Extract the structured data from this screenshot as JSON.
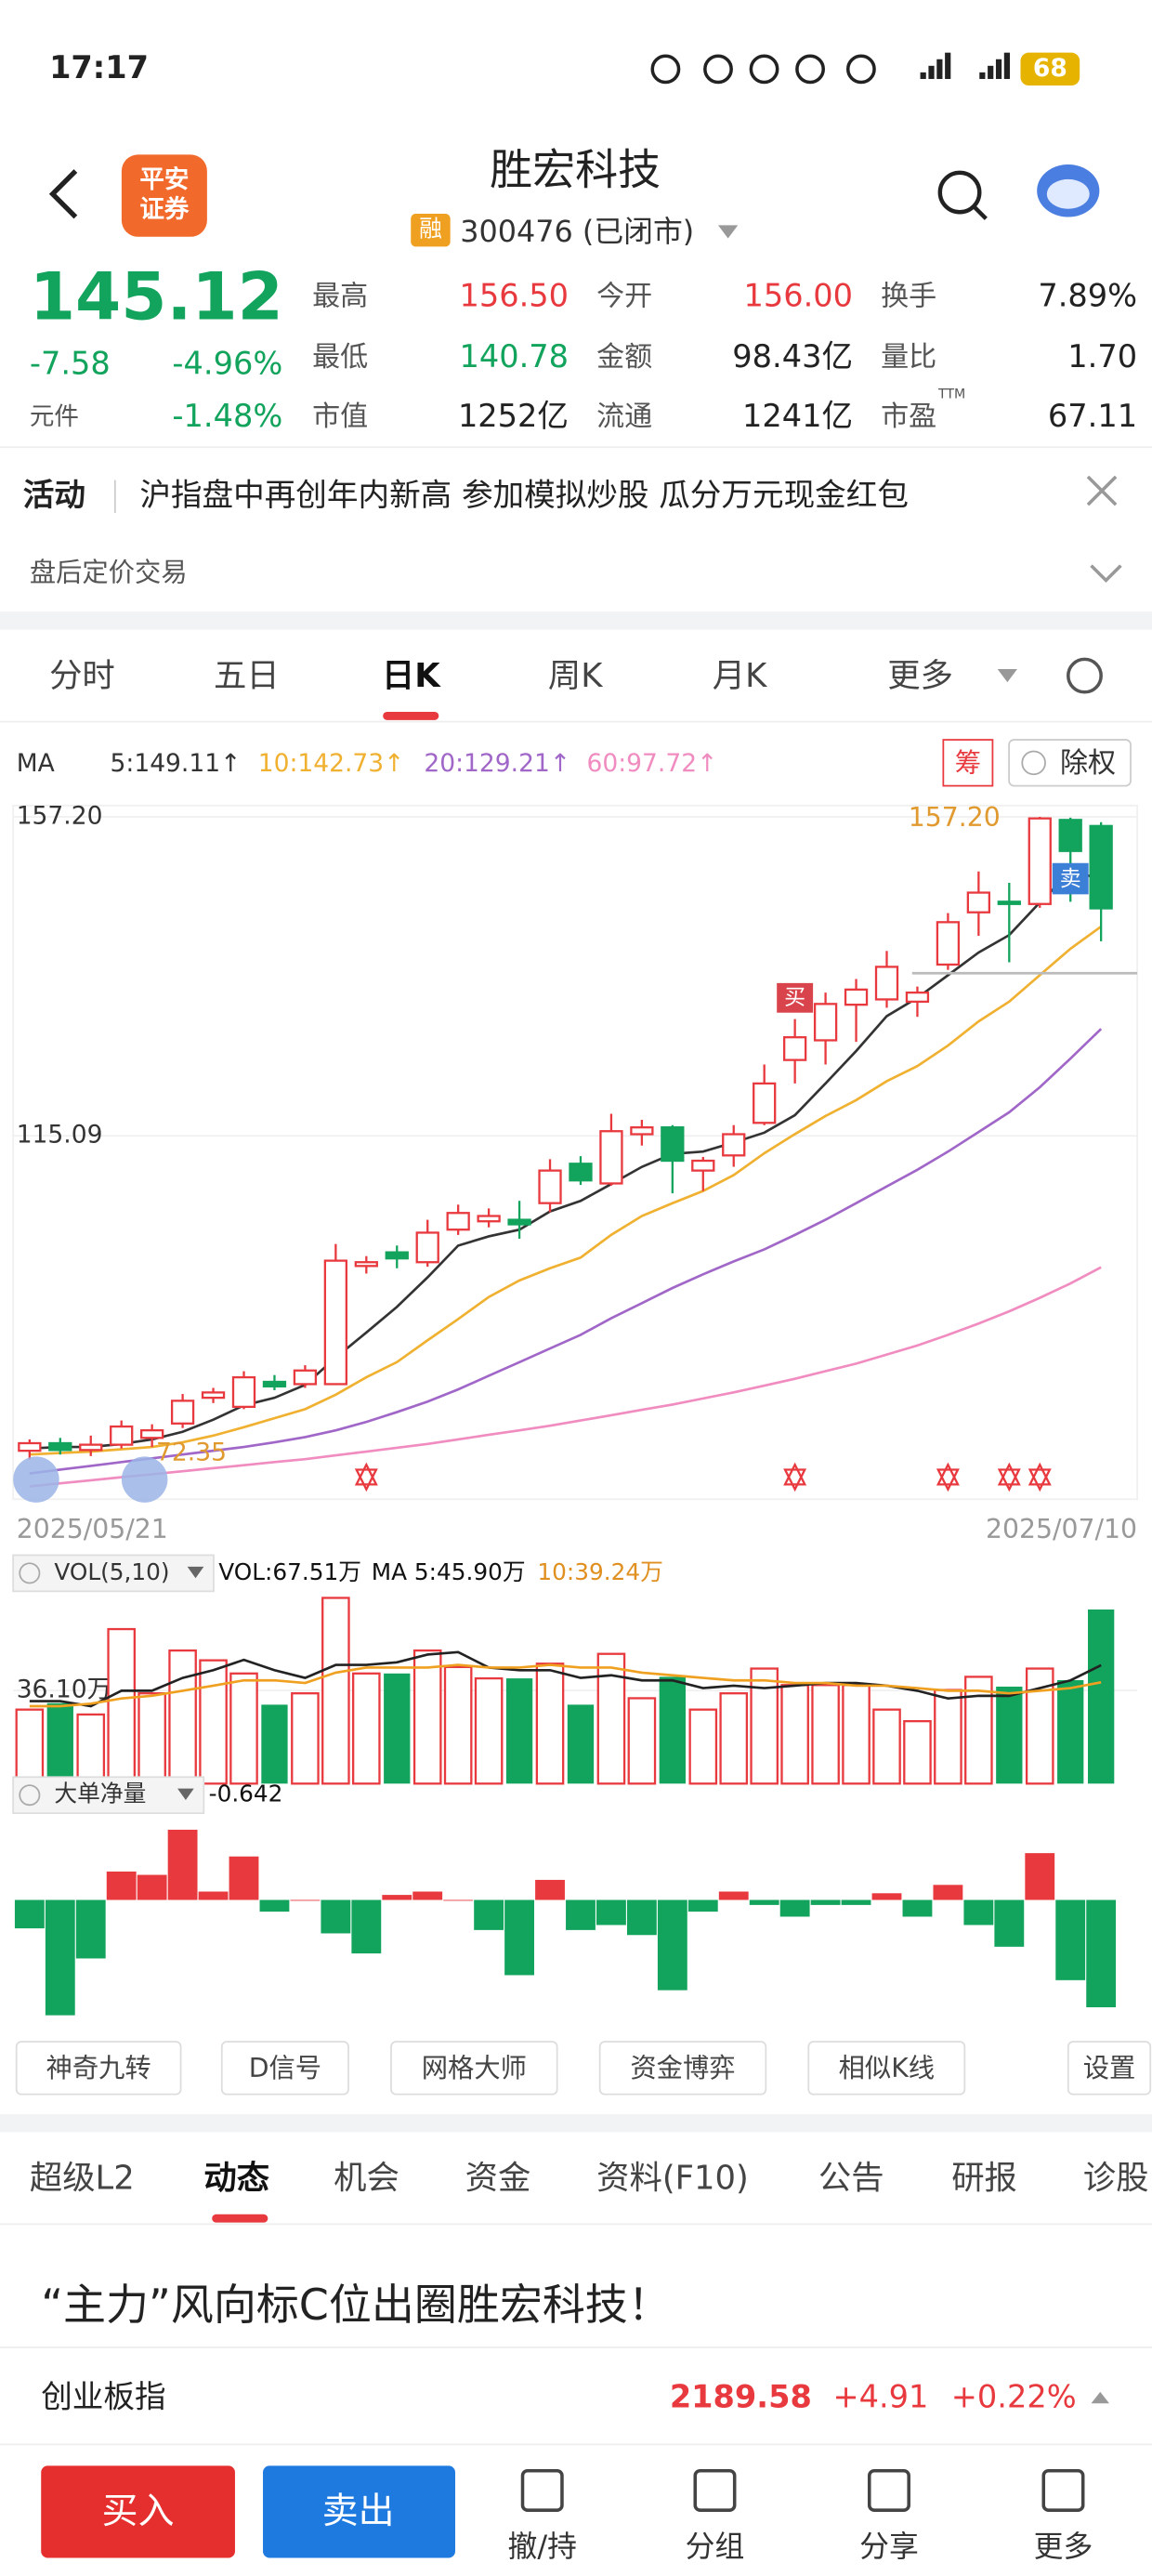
{
  "status_bar": {
    "time": "17:17",
    "battery": "68"
  },
  "header": {
    "logo": [
      "平安",
      "证券"
    ],
    "title": "胜宏科技",
    "badge": "融",
    "code": "300476 (已闭市)"
  },
  "quote": {
    "price": "145.12",
    "change": "-7.58",
    "change_pct": "-4.96%",
    "sector": "元件",
    "sector_pct": "-1.48%",
    "fields": [
      [
        "最高",
        "156.50"
      ],
      [
        "最低",
        "140.78"
      ],
      [
        "市值",
        "1252亿"
      ],
      [
        "今开",
        "156.00"
      ],
      [
        "金额",
        "98.43亿"
      ],
      [
        "流通",
        "1241亿"
      ],
      [
        "换手",
        "7.89%"
      ],
      [
        "量比",
        "1.70"
      ],
      [
        "市盈",
        "67.11"
      ]
    ],
    "ttm": "TTM"
  },
  "activity": {
    "label": "活动",
    "text": "沪指盘中再创年内新高 参加模拟炒股 瓜分万元现金红包",
    "after_hours": "盘后定价交易"
  },
  "period_tabs": [
    "分时",
    "五日",
    "日K",
    "周K",
    "月K",
    "更多"
  ],
  "active_period": 2,
  "chart_tools": {
    "chips": "筹",
    "adjust": "除权"
  },
  "chart_data": [
    {
      "type": "candlestick",
      "indicator": "MA",
      "categories": [
        "2025/05/21",
        null,
        null,
        null,
        null,
        null,
        null,
        null,
        null,
        null,
        null,
        null,
        null,
        null,
        null,
        null,
        null,
        null,
        null,
        null,
        null,
        null,
        null,
        null,
        null,
        null,
        null,
        null,
        null,
        null,
        null,
        null,
        null,
        null,
        null,
        "2025/07/10"
      ],
      "open": [
        73.5,
        74.5,
        73.6,
        74.3,
        75.2,
        77.1,
        80.5,
        79.3,
        82.6,
        82.3,
        82.3,
        97.9,
        99.7,
        98.4,
        102.7,
        103.8,
        104.0,
        106.2,
        111.4,
        108.8,
        115.3,
        116.2,
        110.5,
        112.5,
        116.8,
        125.1,
        127.7,
        132.4,
        133.1,
        132.8,
        137.7,
        144.6,
        146.0,
        145.7,
        156.8,
        156.0
      ],
      "high": [
        75.0,
        75.2,
        75.5,
        77.5,
        77.0,
        81.0,
        81.8,
        84.0,
        83.5,
        84.8,
        100.8,
        99.2,
        100.6,
        104.0,
        106.0,
        105.5,
        106.5,
        112.0,
        112.4,
        118.0,
        117.2,
        116.5,
        112.3,
        116.5,
        124.5,
        130.5,
        134.0,
        135.8,
        139.5,
        134.8,
        144.5,
        150.0,
        148.5,
        157.2,
        157.1,
        156.5
      ],
      "low": [
        72.35,
        73.0,
        72.8,
        73.8,
        74.0,
        76.5,
        79.8,
        79.0,
        81.5,
        81.8,
        82.3,
        96.9,
        97.6,
        97.8,
        102.0,
        103.0,
        101.5,
        105.0,
        108.6,
        108.5,
        113.8,
        107.5,
        107.8,
        111.0,
        116.5,
        122.0,
        124.5,
        127.5,
        132.0,
        130.8,
        137.0,
        141.5,
        138.0,
        145.2,
        146.0,
        140.78
      ],
      "close": [
        74.5,
        73.6,
        74.3,
        76.7,
        76.2,
        80.1,
        81.2,
        83.2,
        82.0,
        84.1,
        98.6,
        98.4,
        98.9,
        102.3,
        104.9,
        104.5,
        103.4,
        110.5,
        109.2,
        115.7,
        116.2,
        111.8,
        111.8,
        115.3,
        122.0,
        128.1,
        132.5,
        134.4,
        137.4,
        134.0,
        143.3,
        147.2,
        145.7,
        157.0,
        152.7,
        145.12
      ],
      "ylim": [
        67.1,
        158.7
      ],
      "yticks": [
        {
          "value": 157.2,
          "label": "157.20"
        },
        115.09
      ],
      "grid": true,
      "colors": {
        "up": "#e8393e",
        "down": "#12a35c"
      },
      "series": [
        {
          "name": "5:149.11↑",
          "color": "#333333",
          "values": [
            73.8,
            74.0,
            74.0,
            74.4,
            75.0,
            76.0,
            77.6,
            79.5,
            80.5,
            82.2,
            85.8,
            89.1,
            92.5,
            96.4,
            100.6,
            101.8,
            102.7,
            105.1,
            106.5,
            108.7,
            111.0,
            112.7,
            113.0,
            114.2,
            115.5,
            117.8,
            122.0,
            126.3,
            130.9,
            133.3,
            136.3,
            139.3,
            141.6,
            145.9,
            149.9,
            149.11
          ]
        },
        {
          "name": "10:142.73↑",
          "color": "#f0b030",
          "values": [
            73.0,
            73.2,
            73.4,
            73.7,
            74.0,
            74.6,
            75.5,
            76.6,
            77.8,
            79.0,
            80.9,
            83.2,
            85.2,
            88.1,
            90.9,
            93.8,
            96.0,
            97.6,
            99.0,
            102.0,
            104.5,
            106.2,
            107.8,
            109.9,
            112.8,
            115.3,
            117.7,
            119.8,
            122.3,
            124.3,
            127.0,
            130.2,
            132.8,
            136.3,
            139.8,
            142.73
          ]
        },
        {
          "name": "20:129.21↑",
          "color": "#a066c8",
          "values": [
            70.5,
            71.0,
            71.5,
            72.0,
            72.5,
            73.0,
            73.5,
            74.0,
            74.6,
            75.3,
            76.2,
            77.3,
            78.6,
            80.0,
            81.6,
            83.4,
            85.2,
            87.0,
            88.8,
            91.0,
            93.0,
            95.0,
            96.8,
            98.5,
            100.1,
            102.0,
            104.0,
            106.2,
            108.4,
            110.6,
            113.0,
            115.6,
            118.2,
            121.5,
            125.3,
            129.21
          ]
        },
        {
          "name": "60:97.72↑",
          "color": "#f08cc0",
          "values": [
            68.8,
            69.2,
            69.6,
            70.0,
            70.4,
            70.8,
            71.2,
            71.6,
            72.0,
            72.4,
            72.9,
            73.4,
            73.9,
            74.4,
            75.0,
            75.6,
            76.2,
            76.8,
            77.5,
            78.2,
            78.9,
            79.6,
            80.4,
            81.2,
            82.1,
            83.0,
            84.0,
            85.0,
            86.2,
            87.4,
            88.8,
            90.3,
            91.9,
            93.7,
            95.6,
            97.72
          ]
        }
      ],
      "max_label": "157.20",
      "buy_marker": "买",
      "sell_marker": "卖"
    },
    {
      "type": "bar",
      "indicator": "VOL(5,10)",
      "title": "VOL:67.51万",
      "values": [
        28.7,
        31.2,
        26.8,
        59.9,
        35.0,
        51.6,
        47.8,
        42.7,
        30.6,
        35.0,
        72.0,
        42.7,
        42.7,
        51.6,
        45.2,
        40.8,
        40.8,
        46.5,
        30.6,
        50.3,
        33.1,
        41.4,
        28.7,
        35.0,
        44.6,
        38.2,
        38.2,
        38.2,
        28.7,
        24.2,
        36.3,
        41.4,
        37.6,
        44.6,
        40.1,
        67.51
      ],
      "ylim": [
        0,
        70.1
      ],
      "yticks": [
        {
          "value": 36.1,
          "label": "36.10万"
        }
      ],
      "series": [
        {
          "name": "MA 5:45.90万",
          "color": "#222222",
          "values": [
            32,
            32,
            30,
            36,
            36,
            41,
            44,
            48,
            44,
            41,
            46,
            46,
            47,
            50,
            51,
            45,
            44,
            44,
            41,
            42,
            40,
            40,
            37,
            38,
            37,
            38,
            39,
            39,
            38,
            36,
            33,
            34,
            34,
            37,
            40,
            45.9
          ]
        },
        {
          "name": "10:39.24万",
          "color": "#f0a020",
          "values": [
            30,
            30,
            31,
            33,
            34,
            36,
            38,
            40,
            40,
            39,
            43,
            45,
            45,
            45,
            46,
            45,
            45,
            46,
            45,
            45,
            43,
            42,
            41,
            40,
            40,
            39,
            39,
            38,
            38,
            37,
            36,
            36,
            35,
            36,
            37,
            39.24
          ]
        }
      ]
    },
    {
      "type": "bar",
      "indicator": "大单净量",
      "values": [
        -0.17,
        -0.69,
        -0.35,
        0.17,
        0.15,
        0.42,
        0.05,
        0.26,
        -0.07,
        0,
        -0.2,
        -0.32,
        0.03,
        0.05,
        0,
        -0.18,
        -0.45,
        0.12,
        -0.18,
        -0.15,
        -0.21,
        -0.54,
        -0.07,
        0.05,
        -0.03,
        -0.1,
        -0.03,
        -0.03,
        0.04,
        -0.1,
        0.09,
        -0.15,
        -0.28,
        0.28,
        -0.48,
        -0.642
      ],
      "ylim": [
        -0.73,
        0.45
      ]
    }
  ],
  "tool_buttons": [
    "神奇九转",
    "D信号",
    "网格大师",
    "资金博弈",
    "相似K线",
    "设置"
  ],
  "news_tabs": [
    "超级L2",
    "动态",
    "机会",
    "资金",
    "资料(F10)",
    "公告",
    "研报",
    "诊股"
  ],
  "active_news": 1,
  "headline": "“主力”风向标C位出圈胜宏科技！",
  "index_bar": {
    "name": "创业板指",
    "value": "2189.58",
    "change": "+4.91",
    "change_pct": "+0.22%"
  },
  "bottom_nav": {
    "buy": "买入",
    "sell": "卖出",
    "items": [
      "撤/持",
      "分组",
      "分享",
      "更多"
    ]
  }
}
